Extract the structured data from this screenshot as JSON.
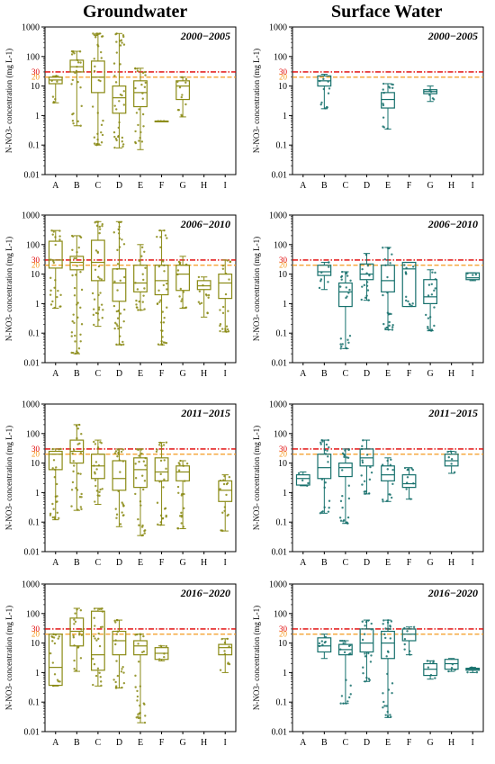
{
  "columns": {
    "groundwater": "Groundwater",
    "surface": "Surface Water"
  },
  "y_axis_label": "N-NO3- concentration (mg L-1)",
  "colors": {
    "groundwater": "#8a8a14",
    "surface": "#16706c",
    "threshold_30": "#e00000",
    "threshold_20": "#f59a1e"
  },
  "chart_data": [
    {
      "type": "box",
      "column": "Groundwater",
      "title": "2000−2005",
      "ylabel": "N-NO3- concentration (mg L-1)",
      "yscale": "log",
      "ylim": [
        0.01,
        1000
      ],
      "yticks": [
        "0.01",
        "0.1",
        "1",
        "10",
        "100",
        "1000"
      ],
      "thresholds": [
        30,
        20
      ],
      "categories": [
        "A",
        "B",
        "C",
        "D",
        "E",
        "F",
        "G",
        "H",
        "I"
      ],
      "boxes": [
        {
          "cat": "A",
          "min": 2.7,
          "q1": 12,
          "median": 16,
          "q3": 20,
          "max": 22
        },
        {
          "cat": "B",
          "min": 0.45,
          "q1": 30,
          "median": 45,
          "q3": 75,
          "max": 150
        },
        {
          "cat": "C",
          "min": 0.1,
          "q1": 6,
          "median": 20,
          "q3": 70,
          "max": 600
        },
        {
          "cat": "D",
          "min": 0.08,
          "q1": 1.2,
          "median": 4,
          "q3": 10,
          "max": 600
        },
        {
          "cat": "E",
          "min": 0.07,
          "q1": 2,
          "median": 6,
          "q3": 15,
          "max": 40
        },
        {
          "cat": "F",
          "min": 0.65,
          "q1": 0.65,
          "median": 0.65,
          "q3": 0.65,
          "max": 0.65
        },
        {
          "cat": "G",
          "min": 0.9,
          "q1": 3.5,
          "median": 10,
          "q3": 15,
          "max": 20
        },
        null,
        null
      ]
    },
    {
      "type": "box",
      "column": "Surface Water",
      "title": "2000−2005",
      "ylabel": "N-NO3- concentration (mg L-1)",
      "yscale": "log",
      "ylim": [
        0.01,
        1000
      ],
      "yticks": [
        "0.01",
        "0.1",
        "1",
        "10",
        "100",
        "1000"
      ],
      "thresholds": [
        30,
        20
      ],
      "categories": [
        "A",
        "B",
        "C",
        "D",
        "E",
        "F",
        "G",
        "H",
        "I"
      ],
      "boxes": [
        null,
        {
          "cat": "B",
          "min": 1.7,
          "q1": 10,
          "median": 15,
          "q3": 22,
          "max": 25
        },
        null,
        null,
        {
          "cat": "E",
          "min": 0.35,
          "q1": 1.8,
          "median": 3.5,
          "q3": 6,
          "max": 12
        },
        null,
        {
          "cat": "G",
          "min": 3,
          "q1": 5.5,
          "median": 6.5,
          "q3": 7.5,
          "max": 10
        },
        null,
        null
      ]
    },
    {
      "type": "box",
      "column": "Groundwater",
      "title": "2006−2010",
      "ylabel": "N-NO3- concentration (mg L-1)",
      "yscale": "log",
      "ylim": [
        0.01,
        1000
      ],
      "yticks": [
        "0.01",
        "0.1",
        "1",
        "10",
        "100",
        "1000"
      ],
      "thresholds": [
        30,
        20
      ],
      "categories": [
        "A",
        "B",
        "C",
        "D",
        "E",
        "F",
        "G",
        "H",
        "I"
      ],
      "boxes": [
        {
          "cat": "A",
          "min": 0.7,
          "q1": 16,
          "median": 30,
          "q3": 130,
          "max": 300
        },
        {
          "cat": "B",
          "min": 0.02,
          "q1": 14,
          "median": 25,
          "q3": 40,
          "max": 200
        },
        {
          "cat": "C",
          "min": 0.17,
          "q1": 6,
          "median": 25,
          "q3": 140,
          "max": 600
        },
        {
          "cat": "D",
          "min": 0.04,
          "q1": 1.2,
          "median": 5,
          "q3": 15,
          "max": 600
        },
        {
          "cat": "E",
          "min": 0.6,
          "q1": 2.5,
          "median": 5,
          "q3": 20,
          "max": 100
        },
        {
          "cat": "F",
          "min": 0.04,
          "q1": 2,
          "median": 6,
          "q3": 20,
          "max": 300
        },
        {
          "cat": "G",
          "min": 0.7,
          "q1": 2.8,
          "median": 10,
          "q3": 20,
          "max": 40
        },
        {
          "cat": "H",
          "min": 0.35,
          "q1": 3,
          "median": 4,
          "q3": 6,
          "max": 8
        },
        {
          "cat": "I",
          "min": 0.11,
          "q1": 1.5,
          "median": 5,
          "q3": 10,
          "max": 30
        }
      ]
    },
    {
      "type": "box",
      "column": "Surface Water",
      "title": "2006−2010",
      "ylabel": "N-NO3- concentration (mg L-1)",
      "yscale": "log",
      "ylim": [
        0.01,
        1000
      ],
      "yticks": [
        "0.01",
        "0.1",
        "1",
        "10",
        "100",
        "1000"
      ],
      "thresholds": [
        30,
        20
      ],
      "categories": [
        "A",
        "B",
        "C",
        "D",
        "E",
        "F",
        "G",
        "H",
        "I"
      ],
      "boxes": [
        null,
        {
          "cat": "B",
          "min": 3,
          "q1": 9,
          "median": 12,
          "q3": 20,
          "max": 25
        },
        {
          "cat": "C",
          "min": 0.03,
          "q1": 0.8,
          "median": 2.5,
          "q3": 5,
          "max": 12
        },
        {
          "cat": "D",
          "min": 1.3,
          "q1": 6.5,
          "median": 10,
          "q3": 22,
          "max": 50
        },
        {
          "cat": "E",
          "min": 0.13,
          "q1": 2.5,
          "median": 6,
          "q3": 20,
          "max": 80
        },
        {
          "cat": "F",
          "min": 0.8,
          "q1": 0.8,
          "median": 15,
          "q3": 25,
          "max": 25
        },
        {
          "cat": "G",
          "min": 0.12,
          "q1": 1,
          "median": 1.7,
          "q3": 6.5,
          "max": 14
        },
        null,
        {
          "cat": "I",
          "min": 6,
          "q1": 6.5,
          "median": 7.5,
          "q3": 11,
          "max": 11
        }
      ]
    },
    {
      "type": "box",
      "column": "Groundwater",
      "title": "2011−2015",
      "ylabel": "N-NO3- concentration (mg L-1)",
      "yscale": "log",
      "ylim": [
        0.01,
        1000
      ],
      "yticks": [
        "0.01",
        "0.1",
        "1",
        "10",
        "100",
        "1000"
      ],
      "thresholds": [
        30,
        20
      ],
      "categories": [
        "A",
        "B",
        "C",
        "D",
        "E",
        "F",
        "G",
        "H",
        "I"
      ],
      "boxes": [
        {
          "cat": "A",
          "min": 0.12,
          "q1": 6,
          "median": 20,
          "q3": 25,
          "max": 30
        },
        {
          "cat": "B",
          "min": 0.25,
          "q1": 10,
          "median": 25,
          "q3": 60,
          "max": 200
        },
        {
          "cat": "C",
          "min": 0.4,
          "q1": 3,
          "median": 8,
          "q3": 20,
          "max": 60
        },
        {
          "cat": "D",
          "min": 0.07,
          "q1": 1.2,
          "median": 3,
          "q3": 12,
          "max": 30
        },
        {
          "cat": "E",
          "min": 0.035,
          "q1": 1.5,
          "median": 6,
          "q3": 15,
          "max": 30
        },
        {
          "cat": "F",
          "min": 0.08,
          "q1": 2.5,
          "median": 5,
          "q3": 15,
          "max": 50
        },
        {
          "cat": "G",
          "min": 0.06,
          "q1": 2.5,
          "median": 5,
          "q3": 8,
          "max": 12
        },
        null,
        {
          "cat": "I",
          "min": 0.05,
          "q1": 0.5,
          "median": 1.2,
          "q3": 2.5,
          "max": 4
        }
      ]
    },
    {
      "type": "box",
      "column": "Surface Water",
      "title": "2011−2015",
      "ylabel": "N-NO3- concentration (mg L-1)",
      "yscale": "log",
      "ylim": [
        0.01,
        1000
      ],
      "yticks": [
        "0.01",
        "0.1",
        "1",
        "10",
        "100",
        "1000"
      ],
      "thresholds": [
        30,
        20
      ],
      "categories": [
        "A",
        "B",
        "C",
        "D",
        "E",
        "F",
        "G",
        "H",
        "I"
      ],
      "boxes": [
        {
          "cat": "A",
          "min": 1.7,
          "q1": 1.8,
          "median": 3,
          "q3": 4,
          "max": 5
        },
        {
          "cat": "B",
          "min": 0.2,
          "q1": 3,
          "median": 7,
          "q3": 20,
          "max": 60
        },
        {
          "cat": "C",
          "min": 0.09,
          "q1": 3.5,
          "median": 7,
          "q3": 10,
          "max": 30
        },
        {
          "cat": "D",
          "min": 0.9,
          "q1": 8,
          "median": 15,
          "q3": 30,
          "max": 60
        },
        {
          "cat": "E",
          "min": 0.5,
          "q1": 2.5,
          "median": 4,
          "q3": 8,
          "max": 15
        },
        {
          "cat": "F",
          "min": 0.6,
          "q1": 1.5,
          "median": 2,
          "q3": 4,
          "max": 7
        },
        null,
        {
          "cat": "H",
          "min": 4.5,
          "q1": 8,
          "median": 12,
          "q3": 20,
          "max": 25
        },
        null
      ]
    },
    {
      "type": "box",
      "column": "Groundwater",
      "title": "2016−2020",
      "ylabel": "N-NO3- concentration (mg L-1)",
      "yscale": "log",
      "ylim": [
        0.01,
        1000
      ],
      "yticks": [
        "0.01",
        "0.1",
        "1",
        "10",
        "100",
        "1000"
      ],
      "thresholds": [
        30,
        20
      ],
      "categories": [
        "A",
        "B",
        "C",
        "D",
        "E",
        "F",
        "G",
        "H",
        "I"
      ],
      "boxes": [
        {
          "cat": "A",
          "min": 0.35,
          "q1": 0.37,
          "median": 1.5,
          "q3": 20,
          "max": 20
        },
        {
          "cat": "B",
          "min": 1.1,
          "q1": 8,
          "median": 25,
          "q3": 70,
          "max": 150
        },
        {
          "cat": "C",
          "min": 0.35,
          "q1": 1.2,
          "median": 4,
          "q3": 120,
          "max": 150
        },
        {
          "cat": "D",
          "min": 0.3,
          "q1": 4,
          "median": 12,
          "q3": 25,
          "max": 60
        },
        {
          "cat": "E",
          "min": 0.02,
          "q1": 4,
          "median": 8,
          "q3": 12,
          "max": 20
        },
        {
          "cat": "F",
          "min": 2.5,
          "q1": 2.8,
          "median": 4.5,
          "q3": 7,
          "max": 8
        },
        null,
        null,
        {
          "cat": "I",
          "min": 1,
          "q1": 4,
          "median": 7,
          "q3": 9,
          "max": 14
        }
      ]
    },
    {
      "type": "box",
      "column": "Surface Water",
      "title": "2016−2020",
      "ylabel": "N-NO3- concentration (mg L-1)",
      "yscale": "log",
      "ylim": [
        0.01,
        1000
      ],
      "yticks": [
        "0.01",
        "0.1",
        "1",
        "10",
        "100",
        "1000"
      ],
      "thresholds": [
        30,
        20
      ],
      "categories": [
        "A",
        "B",
        "C",
        "D",
        "E",
        "F",
        "G",
        "H",
        "I"
      ],
      "boxes": [
        null,
        {
          "cat": "B",
          "min": 3,
          "q1": 5,
          "median": 8,
          "q3": 15,
          "max": 20
        },
        {
          "cat": "C",
          "min": 0.09,
          "q1": 4,
          "median": 6,
          "q3": 9,
          "max": 12
        },
        {
          "cat": "D",
          "min": 0.5,
          "q1": 5,
          "median": 10,
          "q3": 30,
          "max": 60
        },
        {
          "cat": "E",
          "min": 0.03,
          "q1": 3,
          "median": 10,
          "q3": 25,
          "max": 60
        },
        {
          "cat": "F",
          "min": 4,
          "q1": 12,
          "median": 20,
          "q3": 30,
          "max": 35
        },
        {
          "cat": "G",
          "min": 0.6,
          "q1": 0.8,
          "median": 1.3,
          "q3": 2,
          "max": 2.5
        },
        {
          "cat": "H",
          "min": 1.1,
          "q1": 1.3,
          "median": 2,
          "q3": 2.8,
          "max": 3
        },
        {
          "cat": "I",
          "min": 1,
          "q1": 1.2,
          "median": 1.3,
          "q3": 1.4,
          "max": 1.5
        }
      ]
    }
  ]
}
